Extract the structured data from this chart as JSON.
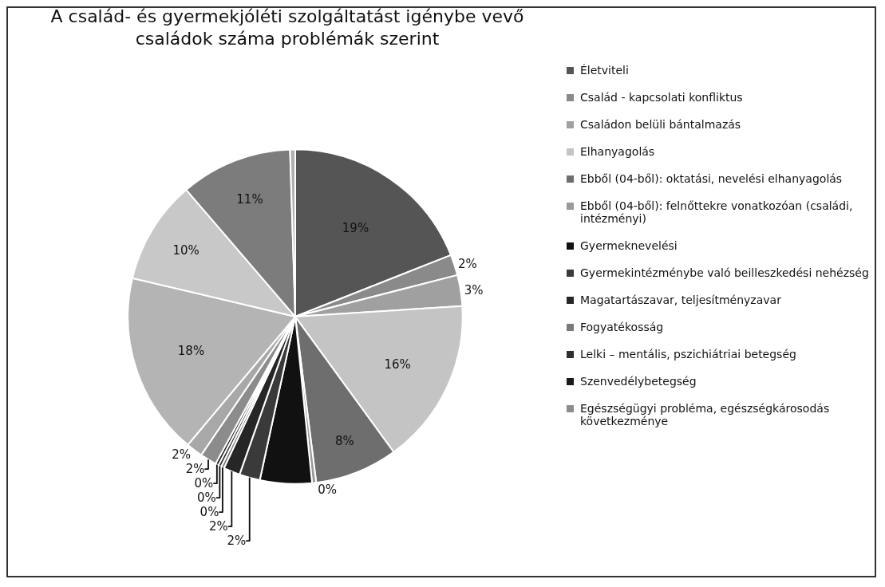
{
  "chart_data": {
    "type": "pie",
    "title": "A család- és gyermekjóléti szolgáltatást igénybe vevő\ncsaládok száma problémák szerint",
    "categories": [
      "Életviteli",
      "Család - kapcsolati konfliktus",
      "Családon belüli bántalmazás",
      "Elhanyagolás",
      "Ebből (04-ből): oktatási, nevelési elhanyagolás",
      "Ebből (04-ből): felnőttekre vonatkozóan (családi, intézményi)",
      "Gyermeknevelési",
      "Gyermekintézménybe való beilleszkedési nehézség",
      "Magatartászavar, teljesítményzavar",
      "Fogyatékosság",
      "Lelki – mentális, pszichiátriai betegség",
      "Szenvedélybetegség",
      "Egészségügyi probléma, egészségkárosodás következménye",
      null,
      null,
      null,
      null,
      null
    ],
    "values": [
      19,
      2,
      3,
      16,
      8,
      0.4,
      5,
      2,
      1.6,
      0.3,
      0.3,
      0.3,
      1.6,
      1.6,
      17.6,
      10,
      10.8,
      0.5
    ],
    "colors": [
      "#555555",
      "#8a8a8a",
      "#a0a0a0",
      "#c4c4c4",
      "#6e6e6e",
      "#9a9a9a",
      "#111111",
      "#3a3a3a",
      "#262626",
      "#7a7a7a",
      "#2e2e2e",
      "#1a1a1a",
      "#8c8c8c",
      "#a8a8a8",
      "#b4b4b4",
      "#c8c8c8",
      "#7c7c7c",
      "#b0b0b0"
    ],
    "value_labels": [
      "19%",
      "2%",
      "3%",
      "16%",
      "8%",
      "0%",
      null,
      "2%",
      "2%",
      "0%",
      "0%",
      "0%",
      "2%",
      "2%",
      "18%",
      "10%",
      "11%",
      null
    ],
    "legend": "right"
  }
}
